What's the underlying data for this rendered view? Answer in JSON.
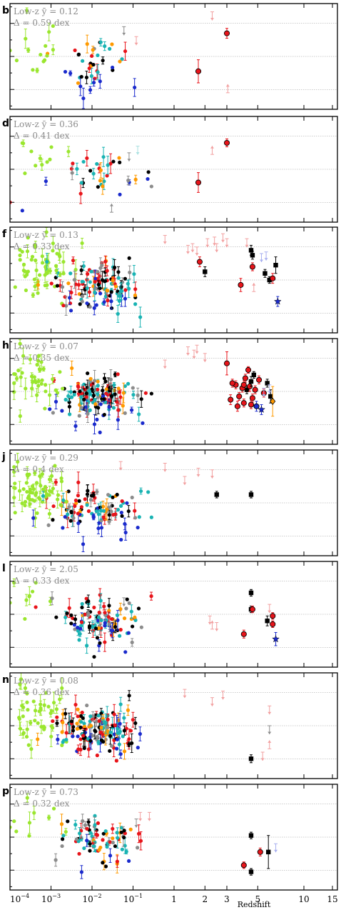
{
  "chart_data": {
    "type": "scatter",
    "xlabel": "Redshift",
    "x_axis": {
      "scale": "piecewise: log10 for 1e-4 to 1, linear (1+z) style for 1 to 15",
      "xlim": [
        0.0001,
        15
      ],
      "tick_labels": [
        {
          "value": 0.0001,
          "label": "10",
          "exponent": "−4"
        },
        {
          "value": 0.001,
          "label": "10",
          "exponent": "−3"
        },
        {
          "value": 0.01,
          "label": "10",
          "exponent": "−2"
        },
        {
          "value": 0.1,
          "label": "10",
          "exponent": "−1"
        },
        {
          "value": 1,
          "label": "1"
        },
        {
          "value": 2,
          "label": "2"
        },
        {
          "value": 3,
          "label": "3"
        },
        {
          "value": 5,
          "label": "5"
        },
        {
          "value": 10,
          "label": "10"
        },
        {
          "value": 15,
          "label": "15"
        }
      ]
    },
    "y_axis": {
      "range": [
        -1.6,
        1.6
      ],
      "reference_lines": [
        -1,
        0,
        1
      ]
    },
    "colors": {
      "black": "#000000",
      "red": "#e8141a",
      "cyan": "#19b3b3",
      "lime": "#9ae62e",
      "blue": "#1a2acc",
      "orange": "#ff9a00",
      "gray": "#8c8c8c",
      "pink": "#f2a0a0",
      "lightblue": "#a8b0f0",
      "lightcyan": "#a8e0e0"
    },
    "panels": [
      {
        "letter": "b",
        "annotation_line1": "Low-z ȳ = 0.12",
        "annotation_line2": "Δ = 0.59 dex",
        "seed": 11,
        "n_scatter": 55,
        "lime_frac": 0.18,
        "points": [
          {
            "x": 1.75,
            "y": -0.45,
            "c": "red",
            "m": "co",
            "e": 0.35
          },
          {
            "x": 3.0,
            "y": 0.7,
            "c": "red",
            "m": "co",
            "e": 0.15
          },
          {
            "x": 0.0001,
            "y": 0.18,
            "c": "lime",
            "m": "o",
            "e": 0.0
          }
        ],
        "limits": [
          {
            "x": 2.3,
            "y": 1.35,
            "c": "pink",
            "dir": "down"
          },
          {
            "x": 3.05,
            "y": -1.1,
            "c": "pink",
            "dir": "up"
          },
          {
            "x": 0.06,
            "y": 0.9,
            "c": "gray",
            "dir": "down"
          },
          {
            "x": 0.12,
            "y": 0.6,
            "c": "pink",
            "dir": "down"
          }
        ]
      },
      {
        "letter": "d",
        "annotation_line1": "Low-z ȳ = 0.36",
        "annotation_line2": "Δ = 0.41 dex",
        "seed": 23,
        "n_scatter": 45,
        "lime_frac": 0.12,
        "points": [
          {
            "x": 1.75,
            "y": -0.4,
            "c": "red",
            "m": "co",
            "e": 0.3
          },
          {
            "x": 3.0,
            "y": 0.8,
            "c": "red",
            "m": "co",
            "e": 0.12
          },
          {
            "x": 0.0001,
            "y": -1.0,
            "c": "red",
            "m": "o",
            "e": 0.0
          },
          {
            "x": 0.0002,
            "y": -1.25,
            "c": "blue",
            "m": "o",
            "e": 0.0
          }
        ],
        "limits": [
          {
            "x": 2.3,
            "y": 0.45,
            "c": "pink",
            "dir": "up"
          },
          {
            "x": 0.13,
            "y": 0.7,
            "c": "lightcyan",
            "dir": "down"
          },
          {
            "x": 0.08,
            "y": 0.5,
            "c": "gray",
            "dir": "down"
          },
          {
            "x": 0.03,
            "y": -1.3,
            "c": "gray",
            "dir": "up"
          }
        ]
      },
      {
        "letter": "f",
        "annotation_line1": "Low-z ȳ = 0.13",
        "annotation_line2": "Δ = 0.33 dex",
        "seed": 37,
        "n_scatter": 190,
        "lime_frac": 0.3,
        "points": [
          {
            "x": 1.8,
            "y": 0.55,
            "c": "red",
            "m": "co",
            "e": 0.15
          },
          {
            "x": 2.0,
            "y": 0.25,
            "c": "black",
            "m": "s",
            "e": 0.15
          },
          {
            "x": 3.8,
            "y": -0.15,
            "c": "red",
            "m": "co",
            "e": 0.2
          },
          {
            "x": 4.5,
            "y": 0.9,
            "c": "black",
            "m": "s",
            "e": 0.15
          },
          {
            "x": 4.6,
            "y": 0.75,
            "c": "black",
            "m": "s",
            "e": 0.12
          },
          {
            "x": 4.6,
            "y": 0.4,
            "c": "red",
            "m": "co",
            "e": 0.12
          },
          {
            "x": 5.6,
            "y": 0.2,
            "c": "black",
            "m": "s",
            "e": 0.12
          },
          {
            "x": 6.0,
            "y": 0.0,
            "c": "black",
            "m": "s",
            "e": 0.1
          },
          {
            "x": 6.3,
            "y": 0.05,
            "c": "red",
            "m": "co",
            "e": 0.15
          },
          {
            "x": 6.6,
            "y": 0.45,
            "c": "black",
            "m": "s",
            "e": 0.25
          },
          {
            "x": 6.8,
            "y": -0.65,
            "c": "blue",
            "m": "star",
            "e": 0.15
          }
        ],
        "limits": [
          {
            "x": 1.4,
            "y": 1.05,
            "c": "pink",
            "dir": "down"
          },
          {
            "x": 1.55,
            "y": 1.1,
            "c": "pink",
            "dir": "down"
          },
          {
            "x": 1.7,
            "y": 1.0,
            "c": "pink",
            "dir": "down"
          },
          {
            "x": 2.1,
            "y": 1.25,
            "c": "pink",
            "dir": "down"
          },
          {
            "x": 2.4,
            "y": 1.3,
            "c": "pink",
            "dir": "down"
          },
          {
            "x": 2.5,
            "y": 1.1,
            "c": "pink",
            "dir": "down"
          },
          {
            "x": 2.8,
            "y": 1.4,
            "c": "pink",
            "dir": "down"
          },
          {
            "x": 3.0,
            "y": 1.25,
            "c": "pink",
            "dir": "down"
          },
          {
            "x": 4.2,
            "y": 1.25,
            "c": "pink",
            "dir": "down"
          },
          {
            "x": 4.7,
            "y": -0.35,
            "c": "pink",
            "dir": "up"
          },
          {
            "x": 5.3,
            "y": 0.8,
            "c": "lightblue",
            "dir": "down"
          },
          {
            "x": 5.7,
            "y": 0.85,
            "c": "lightblue",
            "dir": "down"
          },
          {
            "x": 0.6,
            "y": 1.35,
            "c": "pink",
            "dir": "down"
          }
        ]
      },
      {
        "letter": "h",
        "annotation_line1": "Low-z ȳ = 0.07",
        "annotation_line2": "Δ = 0.35 dex",
        "seed": 53,
        "n_scatter": 190,
        "lime_frac": 0.22,
        "points": [
          {
            "x": 3.0,
            "y": 0.85,
            "c": "red",
            "m": "co",
            "e": 0.35
          },
          {
            "x": 3.5,
            "y": 0.2,
            "c": "red",
            "m": "co",
            "e": 0.12
          },
          {
            "x": 3.7,
            "y": -0.15,
            "c": "red",
            "m": "co",
            "e": 0.12
          },
          {
            "x": 3.9,
            "y": 0.1,
            "c": "red",
            "m": "co",
            "e": 0.12
          },
          {
            "x": 4.0,
            "y": -0.35,
            "c": "red",
            "m": "co",
            "e": 0.12
          },
          {
            "x": 4.1,
            "y": 0.4,
            "c": "red",
            "m": "co",
            "e": 0.12
          },
          {
            "x": 4.2,
            "y": 0.05,
            "c": "black",
            "m": "s",
            "e": 0.12
          },
          {
            "x": 4.3,
            "y": 0.65,
            "c": "red",
            "m": "co",
            "e": 0.1
          },
          {
            "x": 4.4,
            "y": 0.15,
            "c": "red",
            "m": "co",
            "e": 0.15
          },
          {
            "x": 4.5,
            "y": 0.3,
            "c": "black",
            "m": "s",
            "e": 0.15
          },
          {
            "x": 4.6,
            "y": -0.2,
            "c": "red",
            "m": "co",
            "e": 0.12
          },
          {
            "x": 4.7,
            "y": 0.5,
            "c": "black",
            "m": "s",
            "e": 0.1
          },
          {
            "x": 4.8,
            "y": 0.05,
            "c": "red",
            "m": "co",
            "e": 0.12
          },
          {
            "x": 4.9,
            "y": -0.45,
            "c": "blue",
            "m": "co",
            "e": 0.15
          },
          {
            "x": 5.1,
            "y": 0.35,
            "c": "red",
            "m": "co",
            "e": 0.12
          },
          {
            "x": 5.3,
            "y": -0.55,
            "c": "blue",
            "m": "star",
            "e": 0.15
          },
          {
            "x": 5.5,
            "y": -0.05,
            "c": "red",
            "m": "co",
            "e": 0.12
          },
          {
            "x": 5.8,
            "y": 0.25,
            "c": "black",
            "m": "s",
            "e": 0.12
          },
          {
            "x": 6.1,
            "y": -0.15,
            "c": "black",
            "m": "s",
            "e": 0.2
          },
          {
            "x": 6.3,
            "y": -0.3,
            "c": "orange",
            "m": "d",
            "e": 0.45
          },
          {
            "x": 3.2,
            "y": -0.25,
            "c": "red",
            "m": "co",
            "e": 0.15
          },
          {
            "x": 3.3,
            "y": 0.25,
            "c": "red",
            "m": "co",
            "e": 0.12
          },
          {
            "x": 3.6,
            "y": -0.45,
            "c": "red",
            "m": "co",
            "e": 0.15
          },
          {
            "x": 4.0,
            "y": 0.2,
            "c": "red",
            "m": "co",
            "e": 0.12
          },
          {
            "x": 4.5,
            "y": -0.4,
            "c": "red",
            "m": "co",
            "e": 0.12
          }
        ],
        "limits": [
          {
            "x": 1.4,
            "y": 1.35,
            "c": "pink",
            "dir": "down"
          },
          {
            "x": 1.6,
            "y": 1.25,
            "c": "pink",
            "dir": "down"
          },
          {
            "x": 1.7,
            "y": 1.4,
            "c": "pink",
            "dir": "down"
          },
          {
            "x": 2.0,
            "y": 1.15,
            "c": "pink",
            "dir": "down"
          },
          {
            "x": 0.6,
            "y": 0.95,
            "c": "pink",
            "dir": "down"
          },
          {
            "x": 5.5,
            "y": 0.1,
            "c": "lightblue",
            "dir": "down"
          },
          {
            "x": 6.0,
            "y": 0.2,
            "c": "lightblue",
            "dir": "down"
          }
        ]
      },
      {
        "letter": "j",
        "annotation_line1": "Low-z ȳ = 0.29",
        "annotation_line2": "Δ = 0.4 dex",
        "seed": 71,
        "n_scatter": 170,
        "lime_frac": 0.32,
        "points": [
          {
            "x": 2.5,
            "y": 0.25,
            "c": "black",
            "m": "s",
            "e": 0.1
          },
          {
            "x": 4.5,
            "y": 0.25,
            "c": "black",
            "m": "s",
            "e": 0.1
          }
        ],
        "limits": [
          {
            "x": 1.3,
            "y": 0.8,
            "c": "pink",
            "dir": "down"
          },
          {
            "x": 1.75,
            "y": 1.05,
            "c": "pink",
            "dir": "down"
          },
          {
            "x": 2.3,
            "y": 1.0,
            "c": "pink",
            "dir": "down"
          },
          {
            "x": 0.6,
            "y": 1.2,
            "c": "pink",
            "dir": "down"
          },
          {
            "x": 0.05,
            "y": 1.25,
            "c": "pink",
            "dir": "down"
          }
        ]
      },
      {
        "letter": "l",
        "annotation_line1": "Low-z ȳ = 2.05",
        "annotation_line2": "Δ = 0.33 dex",
        "seed": 89,
        "n_scatter": 120,
        "lime_frac": 0.1,
        "points": [
          {
            "x": 4.5,
            "y": 0.65,
            "c": "black",
            "m": "s",
            "e": 0.1
          },
          {
            "x": 4.5,
            "y": 0.15,
            "c": "black",
            "m": "s",
            "e": 0.1
          },
          {
            "x": 4.6,
            "y": 0.15,
            "c": "red",
            "m": "co",
            "e": 0.1
          },
          {
            "x": 4.0,
            "y": -0.6,
            "c": "red",
            "m": "co",
            "e": 0.12
          },
          {
            "x": 5.8,
            "y": -0.2,
            "c": "black",
            "m": "s",
            "e": 0.15
          },
          {
            "x": 6.3,
            "y": -0.3,
            "c": "red",
            "m": "co",
            "e": 0.1
          },
          {
            "x": 6.3,
            "y": -0.05,
            "c": "red",
            "m": "co",
            "e": 0.1
          },
          {
            "x": 6.6,
            "y": -0.75,
            "c": "blue",
            "m": "star",
            "e": 0.2
          },
          {
            "x": 0.0001,
            "y": 0.35,
            "c": "lime",
            "m": "o",
            "e": 0.0
          }
        ],
        "limits": [
          {
            "x": 2.2,
            "y": -0.05,
            "c": "pink",
            "dir": "down"
          },
          {
            "x": 2.3,
            "y": -0.45,
            "c": "pink",
            "dir": "up"
          },
          {
            "x": 2.5,
            "y": -0.25,
            "c": "pink",
            "dir": "down"
          },
          {
            "x": 6.0,
            "y": 0.3,
            "c": "pink",
            "dir": "down"
          },
          {
            "x": 0.06,
            "y": 0.5,
            "c": "gray",
            "dir": "down"
          }
        ]
      },
      {
        "letter": "n",
        "annotation_line1": "Low-z ȳ = 0.08",
        "annotation_line2": "Δ = 0.36 dex",
        "seed": 97,
        "n_scatter": 210,
        "lime_frac": 0.25,
        "points": [
          {
            "x": 4.5,
            "y": -1.0,
            "c": "black",
            "m": "s",
            "e": 0.12
          }
        ],
        "limits": [
          {
            "x": 1.3,
            "y": 1.1,
            "c": "pink",
            "dir": "down"
          },
          {
            "x": 2.3,
            "y": 0.85,
            "c": "pink",
            "dir": "down"
          },
          {
            "x": 6.0,
            "y": 0.6,
            "c": "pink",
            "dir": "down"
          },
          {
            "x": 6.0,
            "y": 0.0,
            "c": "gray",
            "dir": "down"
          },
          {
            "x": 6.0,
            "y": -0.7,
            "c": "pink",
            "dir": "up"
          },
          {
            "x": 5.4,
            "y": -0.8,
            "c": "pink",
            "dir": "down"
          },
          {
            "x": 2.8,
            "y": 1.05,
            "c": "pink",
            "dir": "down"
          }
        ]
      },
      {
        "letter": "p",
        "annotation_line1": "Low-z ȳ = 0.73",
        "annotation_line2": "Δ = 0.32 dex",
        "seed": 113,
        "n_scatter": 90,
        "lime_frac": 0.15,
        "points": [
          {
            "x": 4.5,
            "y": 0.05,
            "c": "black",
            "m": "s",
            "e": 0.1
          },
          {
            "x": 4.5,
            "y": -1.05,
            "c": "black",
            "m": "s",
            "e": 0.1
          },
          {
            "x": 4.0,
            "y": -0.85,
            "c": "red",
            "m": "co",
            "e": 0.1
          },
          {
            "x": 5.2,
            "y": -0.45,
            "c": "red",
            "m": "co",
            "e": 0.12
          },
          {
            "x": 5.9,
            "y": -0.45,
            "c": "black",
            "m": "s",
            "e": 0.5
          },
          {
            "x": 0.0001,
            "y": 0.3,
            "c": "lime",
            "m": "o",
            "e": 0.0
          }
        ],
        "limits": [
          {
            "x": 6.6,
            "y": -0.2,
            "c": "lightblue",
            "dir": "down"
          },
          {
            "x": 0.15,
            "y": 0.75,
            "c": "pink",
            "dir": "down"
          },
          {
            "x": 0.25,
            "y": 0.75,
            "c": "pink",
            "dir": "down"
          },
          {
            "x": 0.12,
            "y": 0.55,
            "c": "gray",
            "dir": "down"
          }
        ]
      }
    ]
  }
}
